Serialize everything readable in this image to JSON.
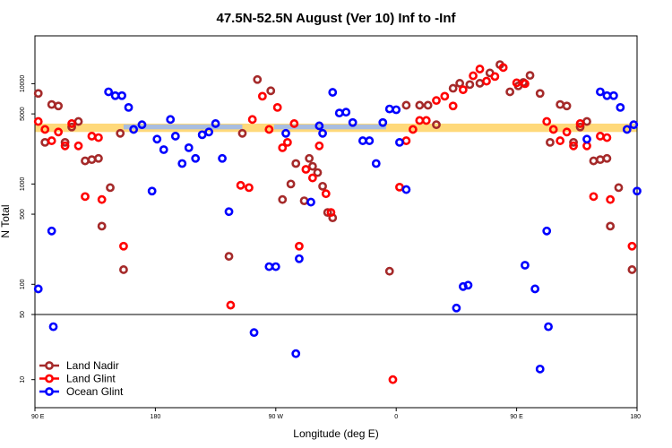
{
  "chart_data": {
    "type": "scatter",
    "title": "47.5N-52.5N August (Ver 10)   Inf to -Inf",
    "xlabel": "Longitude (deg E)",
    "ylabel": "N Total",
    "xlim": [
      90,
      450
    ],
    "x_ticks": [
      {
        "value": 90,
        "label": "90 E"
      },
      {
        "value": 162,
        "label": "180"
      },
      {
        "value": 234,
        "label": "90 W"
      },
      {
        "value": 306,
        "label": "0"
      },
      {
        "value": 378,
        "label": "90 E"
      },
      {
        "value": 450,
        "label": "180"
      }
    ],
    "y_scale": "log",
    "upper_panel": {
      "ylim": [
        50,
        30000
      ],
      "y_ticks": [
        {
          "value": 50,
          "label": "50"
        },
        {
          "value": 100,
          "label": "100"
        },
        {
          "value": 500,
          "label": "500"
        },
        {
          "value": 1000,
          "label": "1000"
        },
        {
          "value": 5000,
          "label": "5000"
        },
        {
          "value": 10000,
          "label": "10000"
        }
      ]
    },
    "lower_panel": {
      "ylim": [
        5,
        50
      ],
      "y_ticks": [
        {
          "value": 10,
          "label": "10"
        },
        {
          "value": 50,
          "label": "50"
        }
      ]
    },
    "band": {
      "ymin": 3300,
      "ymax": 4000,
      "colors": [
        "#ffd97a",
        "#a8bde0"
      ]
    },
    "series": [
      {
        "name": "Land Nadir",
        "color": "#a52a2a",
        "points": [
          [
            92,
            8000
          ],
          [
            96,
            2600
          ],
          [
            100,
            6200
          ],
          [
            104,
            6000
          ],
          [
            108,
            2600
          ],
          [
            112,
            3700
          ],
          [
            116,
            4200
          ],
          [
            120,
            1700
          ],
          [
            124,
            1750
          ],
          [
            128,
            1800
          ],
          [
            130,
            380
          ],
          [
            135,
            920
          ],
          [
            141,
            3200
          ],
          [
            143,
            140
          ],
          [
            206,
            190
          ],
          [
            214,
            3200
          ],
          [
            223,
            11000
          ],
          [
            231,
            8500
          ],
          [
            238,
            700
          ],
          [
            243,
            1000
          ],
          [
            246,
            1600
          ],
          [
            251,
            680
          ],
          [
            254,
            1800
          ],
          [
            256,
            1500
          ],
          [
            259,
            1300
          ],
          [
            262,
            950
          ],
          [
            265,
            520
          ],
          [
            268,
            460
          ],
          [
            302,
            135
          ],
          [
            312,
            6100
          ],
          [
            320,
            6100
          ],
          [
            325,
            6100
          ],
          [
            330,
            3900
          ],
          [
            340,
            9000
          ],
          [
            344,
            10100
          ],
          [
            350,
            9800
          ],
          [
            356,
            10100
          ],
          [
            362,
            12800
          ],
          [
            368,
            15500
          ],
          [
            374,
            8300
          ],
          [
            379,
            9500
          ],
          [
            382,
            10300
          ],
          [
            386,
            12100
          ],
          [
            392,
            8000
          ],
          [
            398,
            2600
          ],
          [
            404,
            6200
          ],
          [
            408,
            6000
          ],
          [
            412,
            2600
          ],
          [
            416,
            3700
          ],
          [
            420,
            4200
          ],
          [
            424,
            1700
          ],
          [
            428,
            1750
          ],
          [
            432,
            1800
          ],
          [
            434,
            380
          ],
          [
            439,
            920
          ],
          [
            447,
            140
          ]
        ]
      },
      {
        "name": "Land Glint",
        "color": "#ff0000",
        "points": [
          [
            92,
            4200
          ],
          [
            96,
            3500
          ],
          [
            100,
            2700
          ],
          [
            104,
            3300
          ],
          [
            108,
            2400
          ],
          [
            112,
            4000
          ],
          [
            116,
            2400
          ],
          [
            120,
            750
          ],
          [
            124,
            3000
          ],
          [
            128,
            2900
          ],
          [
            130,
            700
          ],
          [
            143,
            240
          ],
          [
            207,
            62
          ],
          [
            213,
            970
          ],
          [
            218,
            920
          ],
          [
            220,
            4400
          ],
          [
            226,
            7500
          ],
          [
            230,
            3500
          ],
          [
            235,
            5800
          ],
          [
            238,
            2300
          ],
          [
            241,
            2600
          ],
          [
            245,
            4000
          ],
          [
            248,
            240
          ],
          [
            252,
            1400
          ],
          [
            256,
            1150
          ],
          [
            260,
            2400
          ],
          [
            264,
            800
          ],
          [
            267,
            520
          ],
          [
            304,
            10
          ],
          [
            308,
            930
          ],
          [
            312,
            2700
          ],
          [
            316,
            3500
          ],
          [
            320,
            4300
          ],
          [
            324,
            4300
          ],
          [
            330,
            6800
          ],
          [
            335,
            7500
          ],
          [
            340,
            6000
          ],
          [
            346,
            8700
          ],
          [
            352,
            12000
          ],
          [
            356,
            14000
          ],
          [
            360,
            10600
          ],
          [
            365,
            11800
          ],
          [
            370,
            14500
          ],
          [
            378,
            10200
          ],
          [
            383,
            10000
          ],
          [
            396,
            4200
          ],
          [
            400,
            3500
          ],
          [
            404,
            2700
          ],
          [
            408,
            3300
          ],
          [
            412,
            2400
          ],
          [
            416,
            4000
          ],
          [
            420,
            2400
          ],
          [
            424,
            750
          ],
          [
            428,
            3000
          ],
          [
            432,
            2900
          ],
          [
            434,
            700
          ],
          [
            447,
            240
          ]
        ]
      },
      {
        "name": "Ocean Glint",
        "color": "#0000ff",
        "points": [
          [
            92,
            90
          ],
          [
            100,
            340
          ],
          [
            101,
            37
          ],
          [
            134,
            8300
          ],
          [
            138,
            7600
          ],
          [
            142,
            7600
          ],
          [
            146,
            5800
          ],
          [
            149,
            3500
          ],
          [
            154,
            3900
          ],
          [
            160,
            850
          ],
          [
            163,
            2800
          ],
          [
            167,
            2200
          ],
          [
            171,
            4400
          ],
          [
            174,
            3000
          ],
          [
            178,
            1600
          ],
          [
            182,
            2300
          ],
          [
            186,
            1800
          ],
          [
            190,
            3100
          ],
          [
            194,
            3300
          ],
          [
            198,
            4000
          ],
          [
            202,
            1800
          ],
          [
            206,
            530
          ],
          [
            221,
            32
          ],
          [
            230,
            150
          ],
          [
            234,
            150
          ],
          [
            240,
            3200
          ],
          [
            246,
            19
          ],
          [
            248,
            180
          ],
          [
            255,
            660
          ],
          [
            260,
            3800
          ],
          [
            262,
            3200
          ],
          [
            268,
            8200
          ],
          [
            272,
            5100
          ],
          [
            276,
            5200
          ],
          [
            280,
            4100
          ],
          [
            286,
            2700
          ],
          [
            290,
            2700
          ],
          [
            294,
            1600
          ],
          [
            298,
            4100
          ],
          [
            302,
            5600
          ],
          [
            306,
            5500
          ],
          [
            308,
            2600
          ],
          [
            312,
            880
          ],
          [
            342,
            58
          ],
          [
            346,
            95
          ],
          [
            349,
            98
          ],
          [
            383,
            155
          ],
          [
            389,
            90
          ],
          [
            392,
            13
          ],
          [
            396,
            340
          ],
          [
            397,
            37
          ],
          [
            420,
            2800
          ],
          [
            428,
            8300
          ],
          [
            432,
            7600
          ],
          [
            436,
            7600
          ],
          [
            440,
            5800
          ],
          [
            444,
            3500
          ],
          [
            448,
            3900
          ],
          [
            450,
            850
          ]
        ]
      }
    ],
    "legend": {
      "position": "bottom-left"
    }
  }
}
